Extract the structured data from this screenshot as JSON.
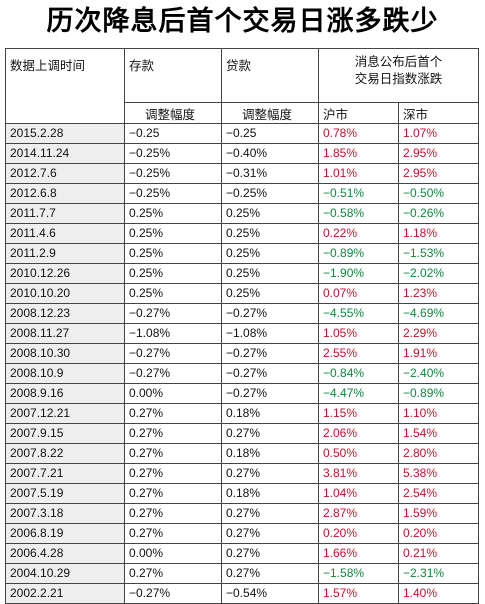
{
  "title": "历次降息后首个交易日涨多跌少",
  "headers": {
    "date": "数据上调时间",
    "deposit": "存款",
    "loan": "贷款",
    "index_line1": "消息公布后首个",
    "index_line2": "交易日指数涨跌",
    "adjust_deposit": "调整幅度",
    "adjust_loan": "调整幅度",
    "sh": "沪市",
    "sz": "深市"
  },
  "rows": [
    {
      "date": "2015.2.28",
      "deposit": "−0.25",
      "loan": "−0.25",
      "sh": "0.78%",
      "sz": "1.07%"
    },
    {
      "date": "2014.11.24",
      "deposit": "−0.25%",
      "loan": "−0.40%",
      "sh": "1.85%",
      "sz": "2.95%"
    },
    {
      "date": "2012.7.6",
      "deposit": "−0.25%",
      "loan": "−0.31%",
      "sh": "1.01%",
      "sz": "2.95%"
    },
    {
      "date": "2012.6.8",
      "deposit": "−0.25%",
      "loan": "−0.25%",
      "sh": "−0.51%",
      "sz": "−0.50%"
    },
    {
      "date": "2011.7.7",
      "deposit": "0.25%",
      "loan": "0.25%",
      "sh": "−0.58%",
      "sz": "−0.26%"
    },
    {
      "date": "2011.4.6",
      "deposit": "0.25%",
      "loan": "0.25%",
      "sh": "0.22%",
      "sz": "1.18%"
    },
    {
      "date": "2011.2.9",
      "deposit": "0.25%",
      "loan": "0.25%",
      "sh": "−0.89%",
      "sz": "−1.53%"
    },
    {
      "date": "2010.12.26",
      "deposit": "0.25%",
      "loan": "0.25%",
      "sh": "−1.90%",
      "sz": "−2.02%"
    },
    {
      "date": "2010.10.20",
      "deposit": "0.25%",
      "loan": "0.25%",
      "sh": "0.07%",
      "sz": "1.23%"
    },
    {
      "date": "2008.12.23",
      "deposit": "−0.27%",
      "loan": "−0.27%",
      "sh": "−4.55%",
      "sz": "−4.69%"
    },
    {
      "date": "2008.11.27",
      "deposit": "−1.08%",
      "loan": "−1.08%",
      "sh": "1.05%",
      "sz": "2.29%"
    },
    {
      "date": "2008.10.30",
      "deposit": "−0.27%",
      "loan": "−0.27%",
      "sh": "2.55%",
      "sz": "1.91%"
    },
    {
      "date": "2008.10.9",
      "deposit": "−0.27%",
      "loan": "−0.27%",
      "sh": "−0.84%",
      "sz": "−2.40%"
    },
    {
      "date": "2008.9.16",
      "deposit": "0.00%",
      "loan": "−0.27%",
      "sh": "−4.47%",
      "sz": "−0.89%"
    },
    {
      "date": "2007.12.21",
      "deposit": "0.27%",
      "loan": "0.18%",
      "sh": "1.15%",
      "sz": "1.10%"
    },
    {
      "date": "2007.9.15",
      "deposit": "0.27%",
      "loan": "0.27%",
      "sh": "2.06%",
      "sz": "1.54%"
    },
    {
      "date": "2007.8.22",
      "deposit": "0.27%",
      "loan": "0.18%",
      "sh": "0.50%",
      "sz": "2.80%"
    },
    {
      "date": "2007.7.21",
      "deposit": "0.27%",
      "loan": "0.27%",
      "sh": "3.81%",
      "sz": "5.38%"
    },
    {
      "date": "2007.5.19",
      "deposit": "0.27%",
      "loan": "0.18%",
      "sh": "1.04%",
      "sz": "2.54%"
    },
    {
      "date": "2007.3.18",
      "deposit": "0.27%",
      "loan": "0.27%",
      "sh": "2.87%",
      "sz": "1.59%"
    },
    {
      "date": "2006.8.19",
      "deposit": "0.27%",
      "loan": "0.27%",
      "sh": "0.20%",
      "sz": "0.20%"
    },
    {
      "date": "2006.4.28",
      "deposit": "0.00%",
      "loan": "0.27%",
      "sh": "1.66%",
      "sz": "0.21%"
    },
    {
      "date": "2004.10.29",
      "deposit": "0.27%",
      "loan": "0.27%",
      "sh": "−1.58%",
      "sz": "−2.31%"
    },
    {
      "date": "2002.2.21",
      "deposit": "−0.27%",
      "loan": "−0.54%",
      "sh": "1.57%",
      "sz": "1.40%"
    }
  ],
  "colors": {
    "positive": "#c8102e",
    "negative": "#0b8a3e",
    "date_bg": "#eeeeee"
  }
}
